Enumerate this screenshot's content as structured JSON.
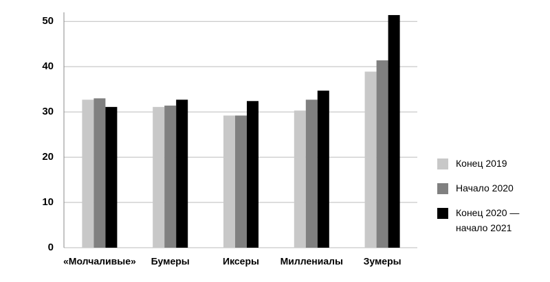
{
  "chart_data": {
    "type": "bar",
    "categories": [
      "«Молчаливые»",
      "Бумеры",
      "Иксеры",
      "Миллениалы",
      "Зумеры"
    ],
    "series": [
      {
        "name": "Конец 2019",
        "color": "#c8c8c8",
        "values": [
          32.7,
          31.1,
          29.2,
          30.3,
          38.9
        ]
      },
      {
        "name": "Начало 2020",
        "color": "#808080",
        "values": [
          33.0,
          31.4,
          29.2,
          32.7,
          41.4
        ]
      },
      {
        "name": "Конец 2020 — начало 2021",
        "color": "#000000",
        "values": [
          31.1,
          32.7,
          32.4,
          34.7,
          51.4
        ]
      }
    ],
    "ylim": [
      0,
      52
    ],
    "yticks": [
      0,
      10,
      20,
      30,
      40,
      50
    ],
    "grid": true,
    "legend": "right"
  }
}
